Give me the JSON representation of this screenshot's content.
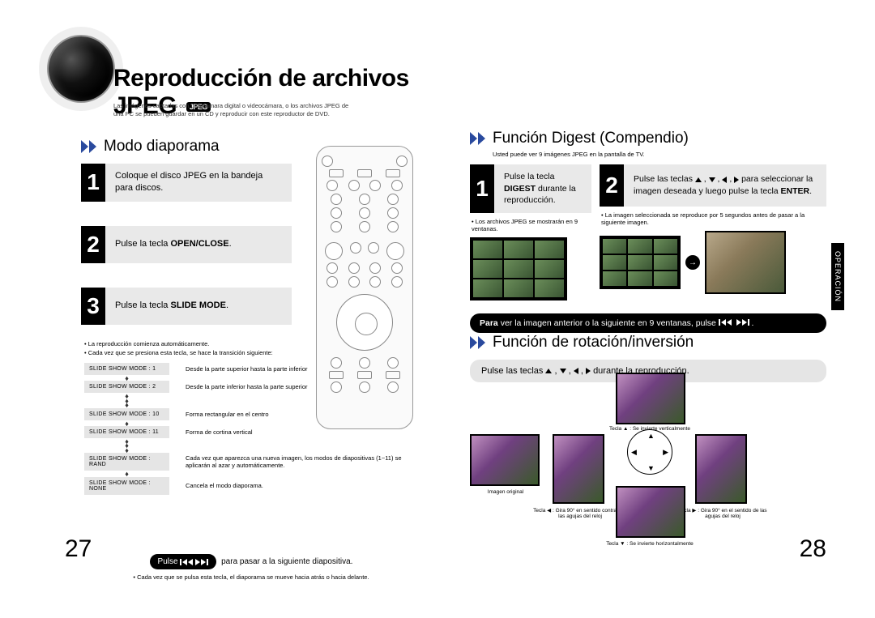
{
  "page": {
    "title": "Reproducción de archivos JPEG",
    "badge": "JPEG",
    "intro_line1": "Las imágenes captadas con una cámara digital o videocámara, o los archivos JPEG de",
    "intro_line2": "una PC se pueden guardar en un CD y reproducir con este reproductor de DVD.",
    "page_left_num": "27",
    "page_right_num": "28",
    "side_tab": "OPERACIÓN"
  },
  "diaporama": {
    "heading": "Modo diaporama",
    "step1": "Coloque el disco JPEG en la bandeja para discos.",
    "step2_pre": "Pulse la tecla ",
    "step2_bold": "OPEN/CLOSE",
    "step3_pre": "Pulse la tecla ",
    "step3_bold": "SLIDE MODE",
    "notes": {
      "n1": "• La reproducción comienza automáticamente.",
      "n2": "• Cada vez que se presiona esta tecla, se hace la transición siguiente:"
    },
    "modes": [
      {
        "label": "SLIDE SHOW MODE : 1",
        "desc": "Desde la parte superior hasta la parte inferior"
      },
      {
        "label": "SLIDE SHOW MODE : 2",
        "desc": "Desde la parte inferior hasta la parte superior"
      },
      {
        "label": "SLIDE SHOW MODE : 10",
        "desc": "Forma rectangular en el centro"
      },
      {
        "label": "SLIDE SHOW MODE : 11",
        "desc": "Forma de cortina vertical"
      },
      {
        "label": "SLIDE SHOW MODE : RAND",
        "desc": "Cada vez que aparezca una nueva imagen, los modos de diapositivas (1~11) se aplicarán al azar y automáticamente."
      },
      {
        "label": "SLIDE SHOW MODE : NONE",
        "desc": "Cancela el modo diaporama."
      }
    ],
    "footer_pulse": "Pulse",
    "footer_text": "para pasar a la siguiente diapositiva.",
    "footer_note": "• Cada vez que se pulsa esta tecla, el diaporama se mueve hacia atrás o hacia delante."
  },
  "digest": {
    "heading": "Función Digest (Compendio)",
    "sub": "Usted puede ver 9 imágenes JPEG en la pantalla de TV.",
    "s1_l1": "Pulse la tecla",
    "s1_bold": "DIGEST",
    "s1_l2": " durante la reproducción.",
    "s1_note": "• Los archivos JPEG se mostrarán en 9 ventanas.",
    "s2_pre": "Pulse las teclas ",
    "s2_mid": " para seleccionar la imagen deseada y luego pulse la tecla ",
    "s2_bold": "ENTER",
    "s2_note": "• La imagen seleccionada se reproduce por 5 segundos antes de pasar a la siguiente imagen.",
    "bar_pre": "Para",
    "bar_text": " ver la imagen anterior o la siguiente en 9 ventanas, pulse "
  },
  "rotate": {
    "heading": "Función de rotación/inversión",
    "bar_pre": "Pulse las teclas ",
    "bar_suf": " durante la reproducción.",
    "labels": {
      "original": "Imagen original",
      "up": "Tecla ▲ : Se invierte verticalmente",
      "down": "Tecla ▼ : Se invierte horizontalmente",
      "left": "Tecla ◀ : Gira 90° en sentido contrario a las agujas del reloj",
      "right": "Tecla ▶ : Gira 90° en el sentido de las agujas del reloj"
    }
  },
  "colors": {
    "accent": "#2a4a9e",
    "step_bg": "#e9e9e9",
    "mode_bg": "#e5e5e5"
  }
}
